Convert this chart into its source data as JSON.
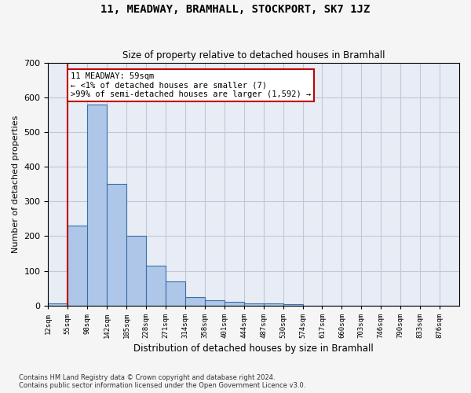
{
  "title": "11, MEADWAY, BRAMHALL, STOCKPORT, SK7 1JZ",
  "subtitle": "Size of property relative to detached houses in Bramhall",
  "xlabel": "Distribution of detached houses by size in Bramhall",
  "ylabel": "Number of detached properties",
  "bin_labels": [
    "12sqm",
    "55sqm",
    "98sqm",
    "142sqm",
    "185sqm",
    "228sqm",
    "271sqm",
    "314sqm",
    "358sqm",
    "401sqm",
    "444sqm",
    "487sqm",
    "530sqm",
    "574sqm",
    "617sqm",
    "660sqm",
    "703sqm",
    "746sqm",
    "790sqm",
    "833sqm",
    "876sqm"
  ],
  "bar_values": [
    7,
    230,
    580,
    350,
    200,
    115,
    70,
    25,
    15,
    10,
    7,
    7,
    5,
    0,
    0,
    0,
    0,
    0,
    0,
    0,
    0
  ],
  "bar_color": "#aec6e8",
  "bar_edge_color": "#3a6ea8",
  "grid_color": "#c0c8d8",
  "background_color": "#e8edf5",
  "property_line_x": 1,
  "property_line_color": "#c00000",
  "annotation_text": "11 MEADWAY: 59sqm\n← <1% of detached houses are smaller (7)\n>99% of semi-detached houses are larger (1,592) →",
  "annotation_box_color": "#ffffff",
  "annotation_box_edge_color": "#c00000",
  "ylim": [
    0,
    700
  ],
  "yticks": [
    0,
    100,
    200,
    300,
    400,
    500,
    600,
    700
  ],
  "footer_line1": "Contains HM Land Registry data © Crown copyright and database right 2024.",
  "footer_line2": "Contains public sector information licensed under the Open Government Licence v3.0."
}
